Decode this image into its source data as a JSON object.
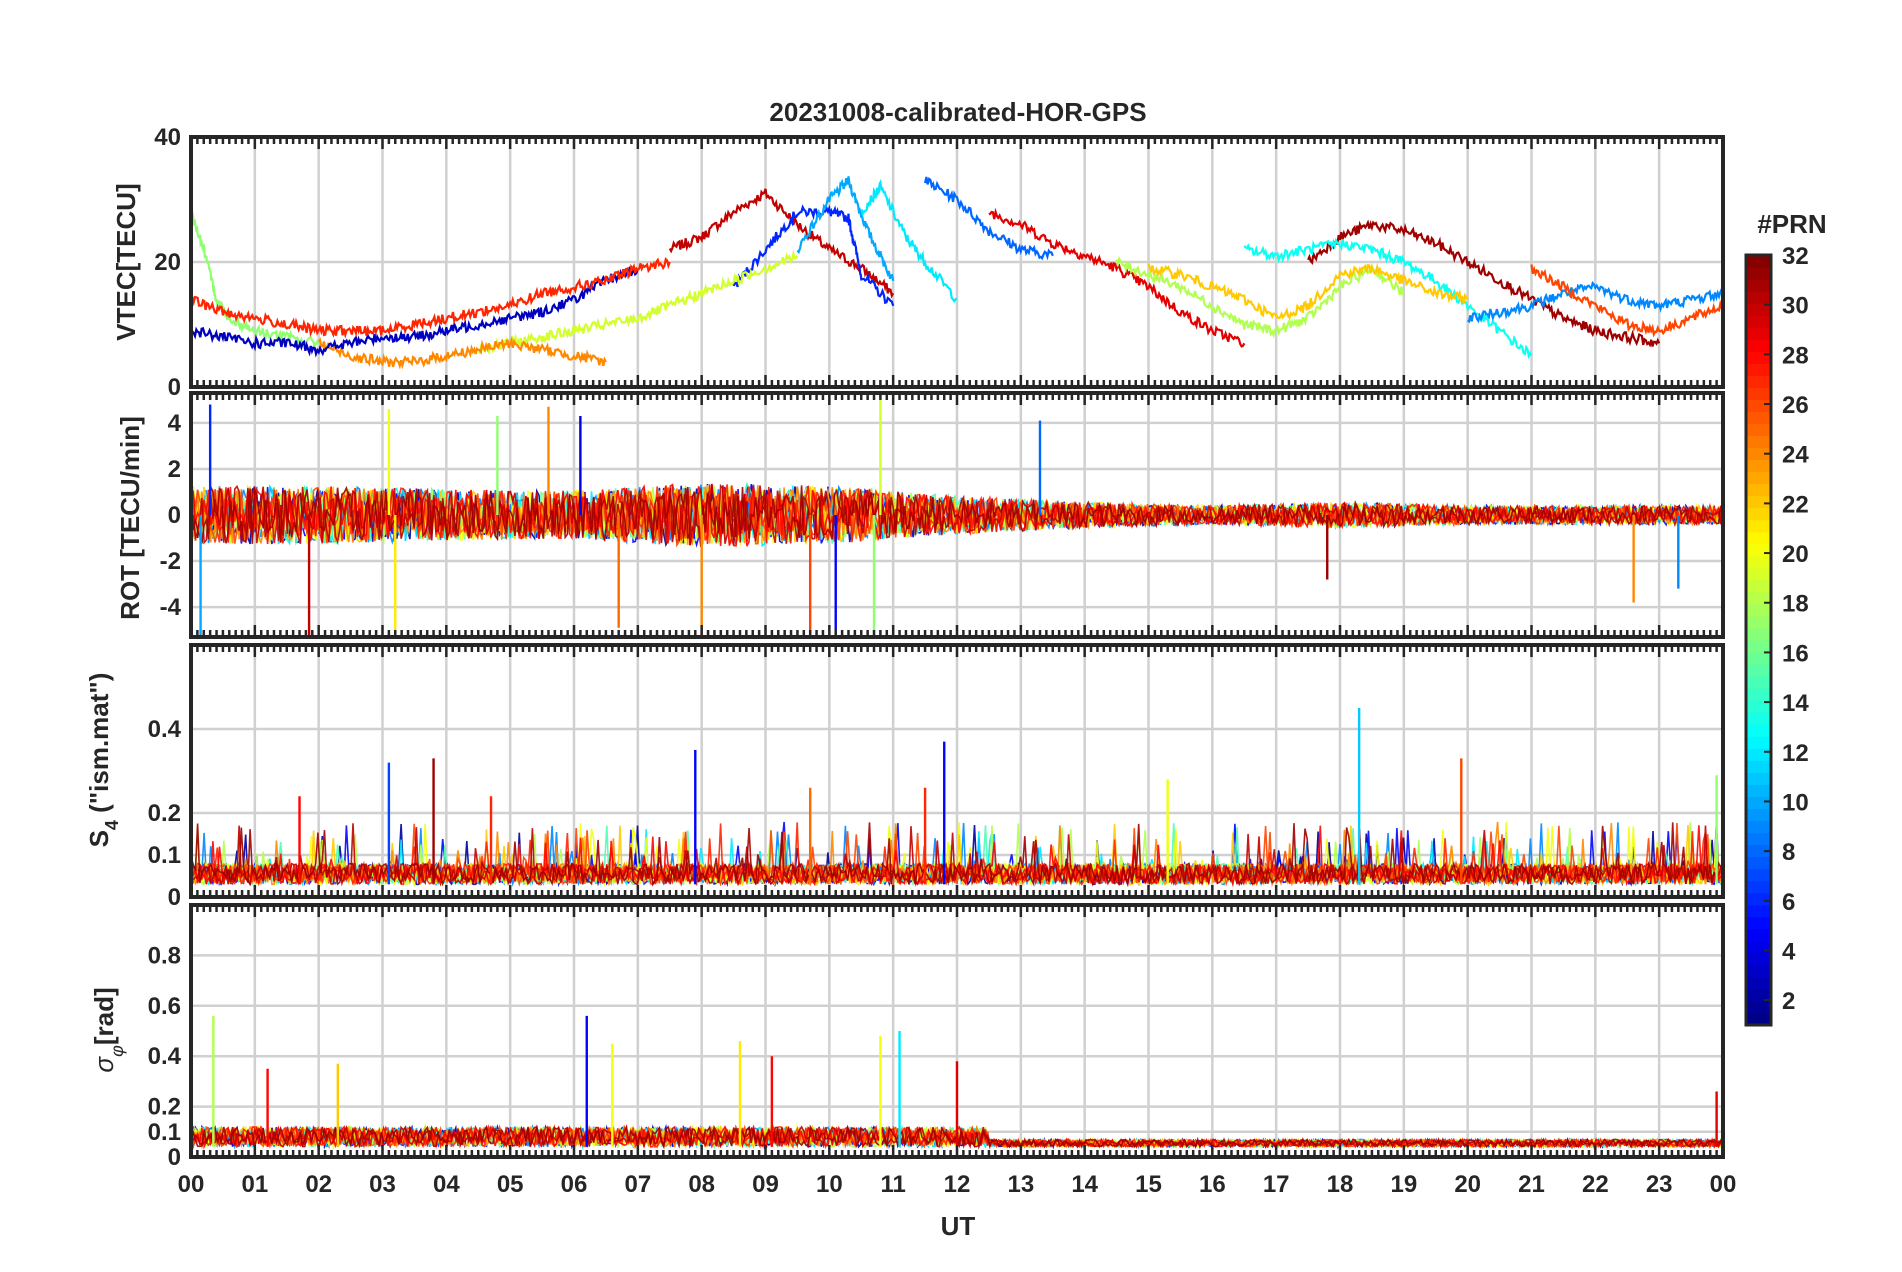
{
  "figure_title": "20231008-calibrated-HOR-GPS",
  "colorbar": {
    "label": "#PRN",
    "ticks": [
      "2",
      "4",
      "6",
      "8",
      "10",
      "12",
      "14",
      "16",
      "18",
      "20",
      "22",
      "24",
      "26",
      "28",
      "30",
      "32"
    ],
    "range": [
      1,
      32
    ],
    "colormap": "jet"
  },
  "chart_data": [
    {
      "type": "line",
      "panel": "vtec",
      "title": "20231008-calibrated-HOR-GPS",
      "ylabel": "VTEC[TECU]",
      "ylim": [
        0,
        40
      ],
      "yticks": [
        "0",
        "20",
        "40"
      ],
      "yticks_values": [
        0,
        20,
        40
      ],
      "series_note": "one line per GPS PRN, colored by PRN number (jet colormap 1-32)",
      "series": [
        {
          "prn": 30,
          "x": [
            7.5,
            8.0,
            8.5,
            9.0,
            9.5,
            10.0,
            10.5,
            11.0
          ],
          "y": [
            22,
            24,
            28,
            31,
            26,
            22,
            19,
            15
          ]
        },
        {
          "prn": 6,
          "x": [
            8.5,
            9.0,
            9.5,
            10.0,
            10.3,
            10.5,
            11.0
          ],
          "y": [
            16,
            22,
            28,
            28,
            27,
            18,
            13
          ]
        },
        {
          "prn": 10,
          "x": [
            9.5,
            10.0,
            10.3,
            10.6,
            11.0
          ],
          "y": [
            22,
            30,
            33,
            25,
            17
          ]
        },
        {
          "prn": 12,
          "x": [
            10.5,
            10.8,
            11.2,
            11.5,
            12.0
          ],
          "y": [
            28,
            32,
            24,
            20,
            14
          ]
        },
        {
          "prn": 8,
          "x": [
            11.5,
            12.0,
            12.5,
            13.0,
            13.5
          ],
          "y": [
            33,
            30,
            25,
            22,
            21
          ]
        },
        {
          "prn": 29,
          "x": [
            12.5,
            13.0,
            13.5,
            14.0,
            14.5,
            15.0,
            15.5,
            16.0,
            16.5
          ],
          "y": [
            28,
            26,
            23,
            21,
            19,
            16,
            12,
            9,
            7
          ]
        },
        {
          "prn": 31,
          "x": [
            17.5,
            18.0,
            18.5,
            19.0,
            19.5,
            20.0,
            20.5,
            21.0,
            21.5,
            22.0,
            22.5,
            23.0
          ],
          "y": [
            20,
            24,
            26,
            25,
            23,
            20,
            17,
            14,
            11,
            9,
            8,
            7
          ]
        },
        {
          "prn": 18,
          "x": [
            14.5,
            15.0,
            15.5,
            16.0,
            16.5,
            17.0,
            17.5,
            18.0,
            18.5,
            19.0
          ],
          "y": [
            20,
            18,
            16,
            13,
            10,
            9,
            11,
            16,
            19,
            15
          ]
        },
        {
          "prn": 13,
          "x": [
            16.5,
            17.0,
            17.5,
            18.0,
            18.5,
            19.0,
            19.5,
            20.0,
            20.5,
            21.0
          ],
          "y": [
            22,
            21,
            22,
            23,
            22,
            20,
            17,
            13,
            9,
            5
          ]
        },
        {
          "prn": 22,
          "x": [
            15.0,
            15.5,
            16.0,
            16.5,
            17.0,
            17.5,
            18.0,
            18.5,
            19.0,
            19.5,
            20.0
          ],
          "y": [
            19,
            18,
            16,
            14,
            11,
            13,
            18,
            19,
            17,
            15,
            14
          ]
        },
        {
          "prn": 9,
          "x": [
            20.0,
            20.5,
            21.0,
            21.5,
            22.0,
            22.5,
            23.0,
            23.5,
            24.0
          ],
          "y": [
            11,
            12,
            13,
            15,
            16,
            14,
            13,
            14,
            15
          ]
        },
        {
          "prn": 26,
          "x": [
            21.0,
            21.5,
            22.0,
            22.5,
            23.0,
            23.5,
            24.0
          ],
          "y": [
            19,
            16,
            13,
            10,
            9,
            11,
            13
          ]
        },
        {
          "prn": 19,
          "x": [
            4.5,
            5.0,
            5.5,
            6.0,
            6.5,
            7.0,
            7.5,
            8.0,
            8.5,
            9.0,
            9.5
          ],
          "y": [
            6,
            7,
            8,
            9,
            10,
            11,
            13,
            15,
            17,
            19,
            21
          ]
        },
        {
          "prn": 24,
          "x": [
            2.0,
            2.5,
            3.0,
            3.5,
            4.0,
            4.5,
            5.0,
            5.5,
            6.0,
            6.5
          ],
          "y": [
            7,
            5,
            4,
            4,
            5,
            6,
            7,
            6,
            5,
            4
          ]
        },
        {
          "prn": 17,
          "x": [
            0.0,
            0.2,
            0.4,
            0.6,
            1.0,
            1.5,
            2.0
          ],
          "y": [
            28,
            22,
            14,
            11,
            9,
            8,
            7
          ]
        },
        {
          "prn": 3,
          "x": [
            0.0,
            0.5,
            1.0,
            1.5,
            2.0,
            2.5,
            3.0,
            3.5,
            4.0,
            4.5,
            5.0,
            5.5,
            6.0,
            6.5,
            7.0
          ],
          "y": [
            9,
            8,
            7,
            7,
            6,
            7,
            8,
            8,
            9,
            10,
            11,
            12,
            14,
            17,
            19
          ]
        },
        {
          "prn": 27,
          "x": [
            0.0,
            0.5,
            1.0,
            1.5,
            2.0,
            2.5,
            3.0,
            3.5,
            4.0,
            4.5,
            5.0,
            5.5,
            6.0,
            6.5,
            7.0,
            7.5
          ],
          "y": [
            14,
            12,
            11,
            10,
            9,
            9,
            9,
            10,
            11,
            12,
            13,
            15,
            16,
            17,
            19,
            20
          ]
        }
      ]
    },
    {
      "type": "line",
      "panel": "rot",
      "ylabel": "ROT [TECU/min]",
      "ylim": [
        -5.3,
        5.3
      ],
      "yticks": [
        "-4",
        "-2",
        "0",
        "2",
        "4"
      ],
      "yticks_values": [
        -4,
        -2,
        0,
        2,
        4
      ],
      "series_note": "dense noisy per-PRN rate of TEC, centered on 0; enhanced activity 0-12 UT, quieter 12-24 UT",
      "activity_profile": {
        "x": [
          0,
          2,
          4,
          6,
          8,
          10,
          12,
          14,
          16,
          18,
          20,
          22,
          24
        ],
        "amplitude": [
          1.8,
          1.8,
          1.6,
          1.5,
          2.0,
          1.8,
          1.2,
          0.8,
          0.6,
          0.8,
          0.6,
          0.6,
          0.6
        ]
      },
      "spikes": [
        {
          "x": 0.15,
          "y": -5.3,
          "prn": 10
        },
        {
          "x": 0.3,
          "y": 4.8,
          "prn": 6
        },
        {
          "x": 1.85,
          "y": -5.3,
          "prn": 30
        },
        {
          "x": 3.1,
          "y": 4.6,
          "prn": 20
        },
        {
          "x": 3.2,
          "y": -5.3,
          "prn": 21
        },
        {
          "x": 4.8,
          "y": 4.3,
          "prn": 17
        },
        {
          "x": 5.6,
          "y": 4.7,
          "prn": 24
        },
        {
          "x": 6.1,
          "y": 4.3,
          "prn": 4
        },
        {
          "x": 6.7,
          "y": -4.9,
          "prn": 25
        },
        {
          "x": 8.0,
          "y": -5.3,
          "prn": 24
        },
        {
          "x": 9.7,
          "y": -5.3,
          "prn": 26
        },
        {
          "x": 10.1,
          "y": -5.3,
          "prn": 5
        },
        {
          "x": 10.7,
          "y": -5.3,
          "prn": 17
        },
        {
          "x": 10.8,
          "y": 5.3,
          "prn": 19
        },
        {
          "x": 13.3,
          "y": 4.1,
          "prn": 8
        },
        {
          "x": 17.8,
          "y": -2.8,
          "prn": 31
        },
        {
          "x": 22.6,
          "y": -3.8,
          "prn": 24
        },
        {
          "x": 23.3,
          "y": -3.2,
          "prn": 9
        }
      ]
    },
    {
      "type": "line",
      "panel": "s4",
      "ylabel_main": "S",
      "ylabel_sub": "4",
      "ylabel_rest": " (\"ism.mat\")",
      "ylim": [
        0,
        0.6
      ],
      "yticks": [
        "0",
        "0.1",
        "0.2",
        "0.4"
      ],
      "yticks_values": [
        0,
        0.1,
        0.2,
        0.4
      ],
      "series_note": "amplitude scintillation index per PRN, mostly below 0.1 with bursts",
      "spikes": [
        {
          "x": 1.7,
          "y": 0.24,
          "prn": 28
        },
        {
          "x": 3.1,
          "y": 0.32,
          "prn": 7
        },
        {
          "x": 3.8,
          "y": 0.33,
          "prn": 31
        },
        {
          "x": 4.7,
          "y": 0.24,
          "prn": 27
        },
        {
          "x": 7.9,
          "y": 0.35,
          "prn": 5
        },
        {
          "x": 9.7,
          "y": 0.26,
          "prn": 25
        },
        {
          "x": 11.5,
          "y": 0.26,
          "prn": 27
        },
        {
          "x": 11.8,
          "y": 0.37,
          "prn": 5
        },
        {
          "x": 15.3,
          "y": 0.28,
          "prn": 20
        },
        {
          "x": 18.3,
          "y": 0.45,
          "prn": 11
        },
        {
          "x": 19.9,
          "y": 0.33,
          "prn": 26
        },
        {
          "x": 23.9,
          "y": 0.29,
          "prn": 17
        }
      ]
    },
    {
      "type": "line",
      "panel": "sigma_phi",
      "ylabel_main": "σ",
      "ylabel_sub": "φ",
      "ylabel_rest": "[rad]",
      "ylim": [
        0,
        1.0
      ],
      "yticks": [
        "0",
        "0.1",
        "0.2",
        "0.4",
        "0.6",
        "0.8"
      ],
      "yticks_values": [
        0,
        0.1,
        0.2,
        0.4,
        0.6,
        0.8
      ],
      "series_note": "phase scintillation index per PRN, low baseline with bursts 0-12 UT",
      "spikes": [
        {
          "x": 0.35,
          "y": 0.56,
          "prn": 18
        },
        {
          "x": 1.2,
          "y": 0.35,
          "prn": 28
        },
        {
          "x": 2.3,
          "y": 0.37,
          "prn": 22
        },
        {
          "x": 6.2,
          "y": 0.56,
          "prn": 5
        },
        {
          "x": 6.6,
          "y": 0.45,
          "prn": 20
        },
        {
          "x": 8.6,
          "y": 0.46,
          "prn": 21
        },
        {
          "x": 9.1,
          "y": 0.4,
          "prn": 28
        },
        {
          "x": 10.8,
          "y": 0.48,
          "prn": 20
        },
        {
          "x": 11.1,
          "y": 0.5,
          "prn": 12
        },
        {
          "x": 12.0,
          "y": 0.38,
          "prn": 29
        },
        {
          "x": 23.9,
          "y": 0.26,
          "prn": 29
        }
      ]
    }
  ],
  "x_axis": {
    "label": "UT",
    "ticks": [
      "00",
      "01",
      "02",
      "03",
      "04",
      "05",
      "06",
      "07",
      "08",
      "09",
      "10",
      "11",
      "12",
      "13",
      "14",
      "15",
      "16",
      "17",
      "18",
      "19",
      "20",
      "21",
      "22",
      "23",
      "00"
    ],
    "range": [
      0,
      24
    ]
  }
}
